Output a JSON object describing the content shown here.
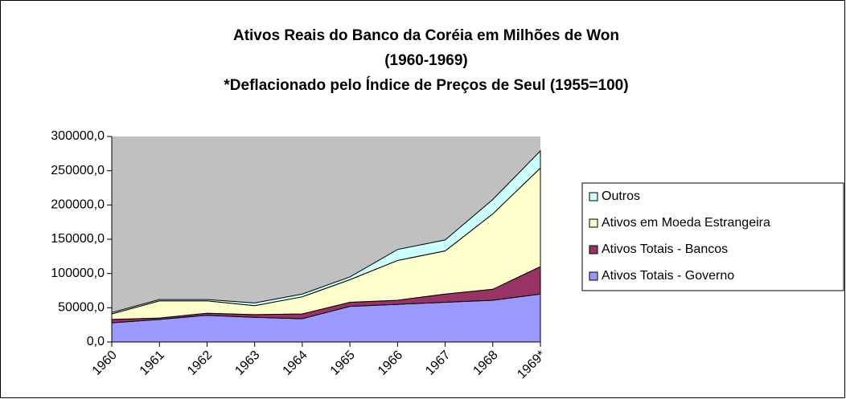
{
  "chart_data": {
    "type": "stacked_area",
    "title": [
      "Ativos Reais do Banco da Coréia em Milhões de Won",
      "(1960-1969)",
      "*Deflacionado pelo Índice de Preços de Seul (1955=100)"
    ],
    "categories": [
      "1960",
      "1961",
      "1962",
      "1963",
      "1964",
      "1965",
      "1966",
      "1967",
      "1968",
      "1969*"
    ],
    "series": [
      {
        "name": "Ativos Totais - Governo",
        "color": "#9999ff",
        "values": [
          28000,
          33000,
          39000,
          36000,
          34000,
          52000,
          55000,
          58000,
          61000,
          70000
        ]
      },
      {
        "name": "Ativos Totais - Bancos",
        "color": "#993366",
        "values": [
          5000,
          2000,
          3000,
          4000,
          7000,
          6000,
          6000,
          12000,
          16000,
          40000
        ]
      },
      {
        "name": "Ativos em Moeda Estrangeira",
        "color": "#ffffcc",
        "values": [
          8000,
          25000,
          18000,
          13000,
          25000,
          33000,
          58000,
          63000,
          110000,
          144000
        ]
      },
      {
        "name": "Outros",
        "color": "#ccffff",
        "values": [
          2000,
          2000,
          2000,
          4000,
          4000,
          4000,
          16000,
          16000,
          21000,
          25000
        ]
      }
    ],
    "ylim": [
      0,
      300000
    ],
    "yticks": [
      {
        "value": 0,
        "label": "0,0"
      },
      {
        "value": 50000,
        "label": "50000,0"
      },
      {
        "value": 100000,
        "label": "100000,0"
      },
      {
        "value": 150000,
        "label": "150000,0"
      },
      {
        "value": 200000,
        "label": "200000,0"
      },
      {
        "value": 250000,
        "label": "250000,0"
      },
      {
        "value": 300000,
        "label": "300000,0"
      }
    ],
    "plot_background": "#c0c0c0",
    "legend": "right"
  }
}
